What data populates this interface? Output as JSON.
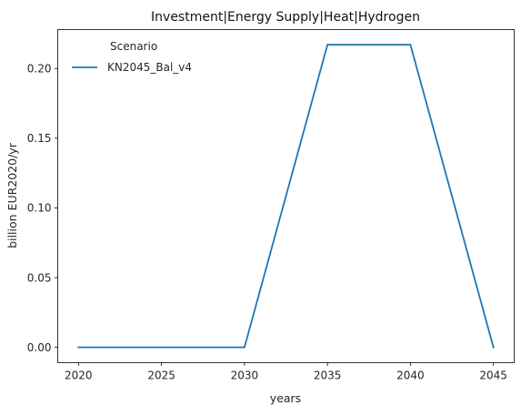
{
  "chart_data": {
    "type": "line",
    "title": "Investment|Energy Supply|Heat|Hydrogen",
    "xlabel": "years",
    "ylabel": "billion EUR2020/yr",
    "x": [
      2020,
      2025,
      2030,
      2035,
      2040,
      2045
    ],
    "series": [
      {
        "name": "KN2045_Bal_v4",
        "color": "#1f77b4",
        "values": [
          0.0,
          0.0,
          0.0,
          0.217,
          0.217,
          0.0
        ]
      }
    ],
    "xlim": [
      2018.75,
      2046.25
    ],
    "ylim": [
      -0.011,
      0.2279
    ],
    "xticks": [
      "2020",
      "2025",
      "2030",
      "2035",
      "2040",
      "2045"
    ],
    "yticks": [
      "0.00",
      "0.05",
      "0.10",
      "0.15",
      "0.20"
    ],
    "legend": {
      "title": "Scenario",
      "placement": "top-left"
    },
    "grid": false
  }
}
